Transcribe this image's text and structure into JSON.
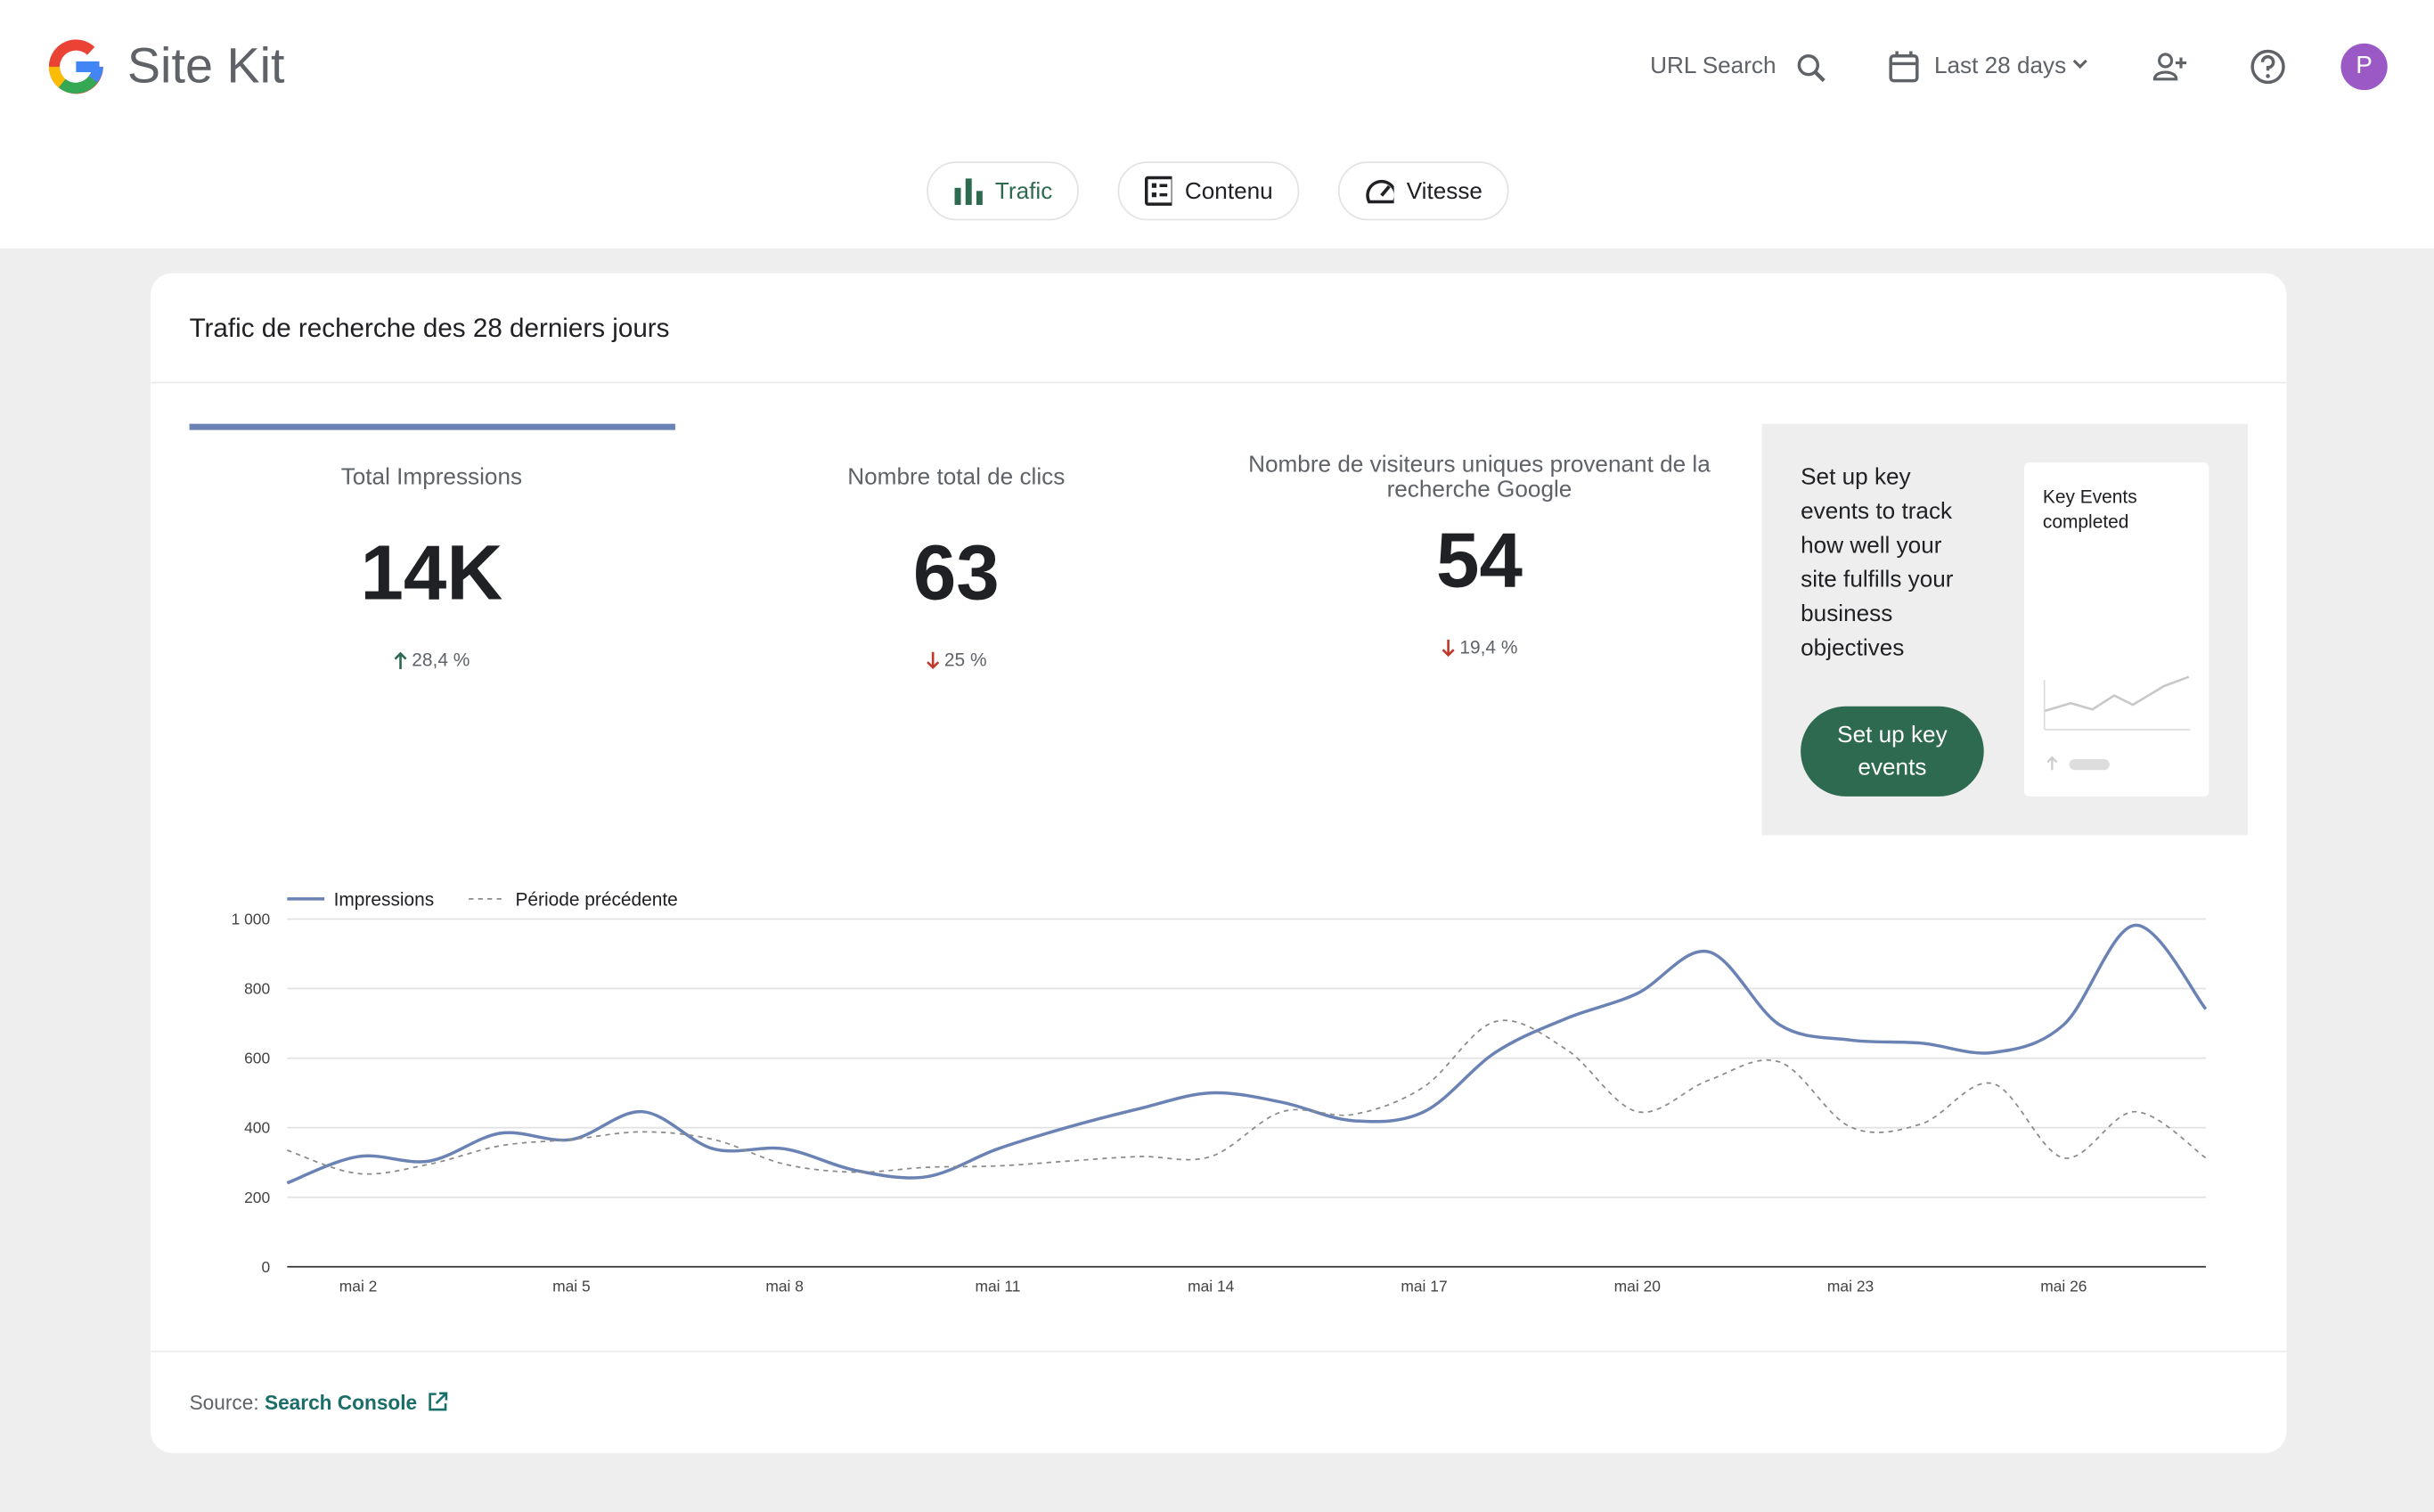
{
  "header": {
    "brand": "Site Kit",
    "url_search": "URL Search",
    "date_range": "Last 28 days",
    "avatar": "P"
  },
  "tabs": [
    "Trafic",
    "Contenu",
    "Vitesse"
  ],
  "card": {
    "title": "Trafic de recherche des 28 derniers jours",
    "metrics": [
      {
        "label": "Total Impressions",
        "value": "14K",
        "change": "28,4 %",
        "direction": "up"
      },
      {
        "label": "Nombre total de clics",
        "value": "63",
        "change": "25 %",
        "direction": "down"
      },
      {
        "label": "Nombre de visiteurs uniques provenant de la recherche Google",
        "value": "54",
        "change": "19,4 %",
        "direction": "down"
      }
    ],
    "promo": {
      "text": "Set up key events to track how well your site fulfills your business objectives",
      "button": "Set up key events",
      "preview_title": "Key Events completed"
    },
    "source": {
      "label": "Source:",
      "link": "Search Console"
    }
  },
  "chart_data": {
    "type": "line",
    "categories": [
      null,
      "mai 2",
      null,
      null,
      "mai 5",
      null,
      null,
      "mai 8",
      null,
      null,
      "mai 11",
      null,
      null,
      "mai 14",
      null,
      null,
      "mai 17",
      null,
      null,
      "mai 20",
      null,
      null,
      "mai 23",
      null,
      null,
      "mai 26",
      null,
      null
    ],
    "series": [
      {
        "name": "Impressions",
        "color": "#6a82b4",
        "dashed": false,
        "values": [
          241,
          317,
          304,
          384,
          366,
          446,
          339,
          339,
          277,
          259,
          339,
          402,
          455,
          500,
          473,
          420,
          446,
          616,
          714,
          786,
          906,
          696,
          652,
          643,
          616,
          696,
          982,
          741
        ]
      },
      {
        "name": "Période précédente",
        "color": "#8a8a8a",
        "dashed": true,
        "values": [
          335,
          268,
          295,
          348,
          366,
          388,
          366,
          295,
          272,
          286,
          290,
          304,
          317,
          317,
          446,
          438,
          518,
          705,
          625,
          446,
          536,
          589,
          402,
          411,
          527,
          313,
          446,
          313
        ]
      }
    ],
    "ylim": [
      0,
      1000
    ],
    "yticks": [
      0,
      200,
      400,
      600,
      800,
      {
        "value": 1000,
        "label": "1 000"
      }
    ],
    "grid": true
  }
}
